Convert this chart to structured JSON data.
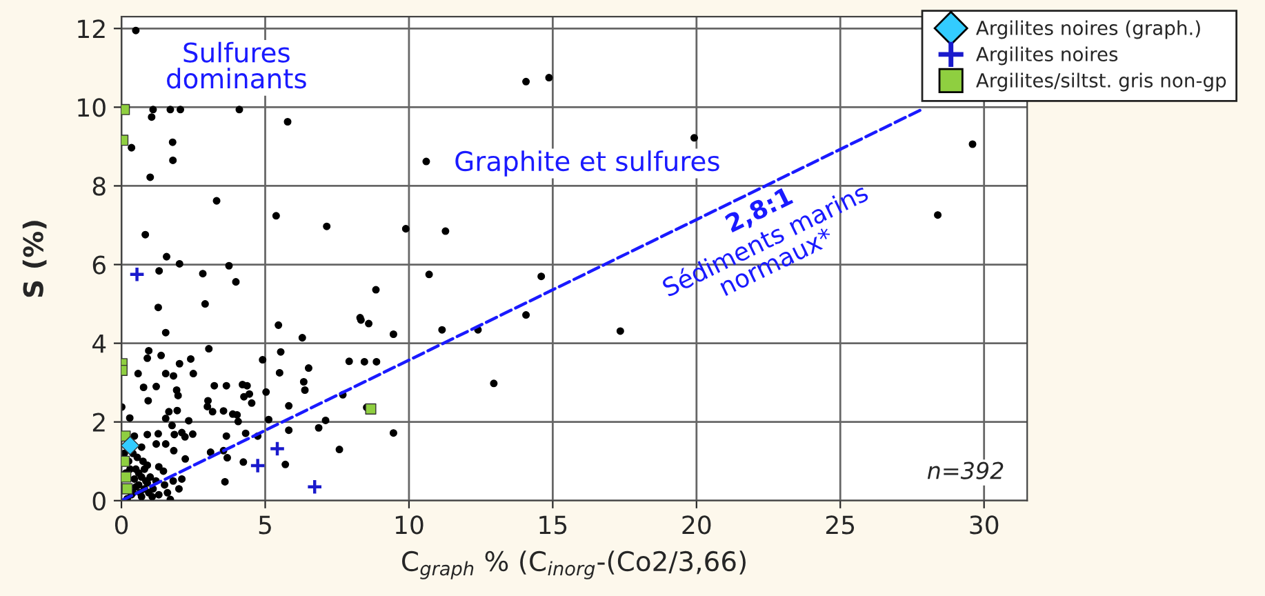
{
  "chart_data": {
    "type": "scatter",
    "xlabel": "C$_{graph}$ % (C$_{inorg}$-(Co2/3,66)",
    "ylabel": "S (%)",
    "xlim": [
      0,
      31.5
    ],
    "ylim": [
      0,
      12.3
    ],
    "xticks": [
      0,
      5,
      10,
      15,
      20,
      25,
      30
    ],
    "yticks": [
      0,
      2,
      4,
      6,
      8,
      10,
      12
    ],
    "grid": true,
    "legend": "top right",
    "annotations": [
      "Sulfures dominants",
      "Graphite et sulfures",
      "2,8:1",
      "Sédiments marins normaux*",
      "n=392"
    ],
    "series": [
      {
        "color": "#000000",
        "marker": "circle",
        "x": [
          0.5,
          1.1,
          1.7,
          2.05,
          4.1,
          1.05,
          5.78,
          0.35,
          1.78,
          1.79,
          1.0,
          10.6,
          3.31,
          5.38,
          7.14,
          9.89,
          11.27,
          0.83,
          1.57,
          2.02,
          1.31,
          2.83,
          3.74,
          10.7,
          14.07,
          14.87,
          19.92,
          28.39,
          29.6,
          14.6,
          11.15,
          12.4,
          14.07,
          17.35,
          12.95,
          3.98,
          8.85,
          1.28,
          2.91,
          8.3,
          8.33,
          8.6,
          5.46,
          9.46,
          1.54,
          6.29,
          3.04,
          0.95,
          1.38,
          0.9,
          5.54,
          4.91,
          7.92,
          8.45,
          8.87,
          2.02,
          2.41,
          6.51,
          0.58,
          1.54,
          1.81,
          2.5,
          5.5,
          6.34,
          6.38,
          0.77,
          1.21,
          3.23,
          3.65,
          4.21,
          4.37,
          1.92,
          1.97,
          0.93,
          4.26,
          4.45,
          4.53,
          5.03,
          3.01,
          2.99,
          7.7,
          5.82,
          1.65,
          1.94,
          1.54,
          1.76,
          2.34,
          3.17,
          3.55,
          3.87,
          4.02,
          4.06,
          5.12,
          8.53,
          7.1,
          6.86,
          5.82,
          9.46,
          0.01,
          0.29,
          0.45,
          0.9,
          1.28,
          1.84,
          2.1,
          2.21,
          2.48,
          3.65,
          4.32,
          4.74,
          0.7,
          1.21,
          1.54,
          1.82,
          3.1,
          3.55,
          3.68,
          2.22,
          7.58,
          5.7,
          4.24,
          3.6,
          2.1,
          1.46,
          1.3,
          1.07,
          1.7,
          0.4,
          0.5,
          0.6,
          0.7,
          0.8,
          0.9,
          0.15,
          0.25,
          0.35,
          0.45,
          0.55,
          0.65,
          0.75,
          0.85,
          0.95,
          0.1,
          0.2,
          0.3,
          0.4,
          0.5,
          0.6,
          0.7,
          0.8,
          0.9,
          1.0,
          1.1,
          1.2,
          1.3,
          1.5,
          1.6,
          1.8,
          2.0
        ],
        "values": [
          11.95,
          9.94,
          9.94,
          9.94,
          9.94,
          9.75,
          9.63,
          8.97,
          9.11,
          8.65,
          8.22,
          8.62,
          7.62,
          7.24,
          6.97,
          6.91,
          6.85,
          6.76,
          6.2,
          6.02,
          5.84,
          5.77,
          5.97,
          5.75,
          10.65,
          10.75,
          9.22,
          7.26,
          9.06,
          5.7,
          4.34,
          4.34,
          4.72,
          4.31,
          2.98,
          5.56,
          5.36,
          4.91,
          5.0,
          4.65,
          4.59,
          4.5,
          4.46,
          4.23,
          4.27,
          4.14,
          3.86,
          3.81,
          3.69,
          3.62,
          3.78,
          3.58,
          3.54,
          3.53,
          3.53,
          3.48,
          3.6,
          3.37,
          3.23,
          3.23,
          3.17,
          3.23,
          3.25,
          3.02,
          2.81,
          2.88,
          2.9,
          2.92,
          2.92,
          2.95,
          2.92,
          2.81,
          2.67,
          2.54,
          2.64,
          2.71,
          2.48,
          2.76,
          2.54,
          2.39,
          2.69,
          2.41,
          2.26,
          2.29,
          2.09,
          1.91,
          2.03,
          2.26,
          2.28,
          2.2,
          2.18,
          2.01,
          2.06,
          2.37,
          2.04,
          1.85,
          1.79,
          1.72,
          2.38,
          2.1,
          1.64,
          1.68,
          1.7,
          1.68,
          1.73,
          1.62,
          1.69,
          1.64,
          1.71,
          1.64,
          1.36,
          1.44,
          1.44,
          1.27,
          1.23,
          1.27,
          1.09,
          1.06,
          1.3,
          0.92,
          0.98,
          0.48,
          0.55,
          0.75,
          0.86,
          0.1,
          0.03,
          0.2,
          0.8,
          0.4,
          0.6,
          0.3,
          0.9,
          0.7,
          1.0,
          0.15,
          0.55,
          1.1,
          0.2,
          1.0,
          0.5,
          0.2,
          1.2,
          0.05,
          0.8,
          1.2,
          0.35,
          0.7,
          0.1,
          0.8,
          0.45,
          0.6,
          0.3,
          0.5,
          0.15,
          0.4,
          0.2,
          0.5,
          0.3
        ]
      },
      {
        "name": "Argilites noires (graph.)",
        "color": "#33ccff",
        "marker": "diamond",
        "x": [
          0.3
        ],
        "values": [
          1.4
        ]
      },
      {
        "name": "Argilites noires",
        "color": "#1a1acc",
        "marker": "cross",
        "x": [
          0.54,
          5.42,
          4.74,
          6.72
        ],
        "values": [
          5.75,
          1.32,
          0.89,
          0.35
        ]
      },
      {
        "name": "Argilites/siltst. gris non-gp",
        "color": "#8fcf40",
        "marker": "square",
        "x": [
          0.1,
          0.05,
          0.02,
          0.02,
          0.13,
          8.67,
          0.1,
          0.15,
          0.2
        ],
        "values": [
          9.94,
          9.16,
          3.48,
          3.31,
          1.64,
          2.33,
          1.0,
          0.6,
          0.3
        ]
      },
      {
        "type": "line",
        "color": "#1a1aff",
        "line_style": "dashed",
        "marker": "none",
        "x": [
          0,
          27.8
        ],
        "values": [
          0,
          9.93
        ]
      }
    ]
  }
}
